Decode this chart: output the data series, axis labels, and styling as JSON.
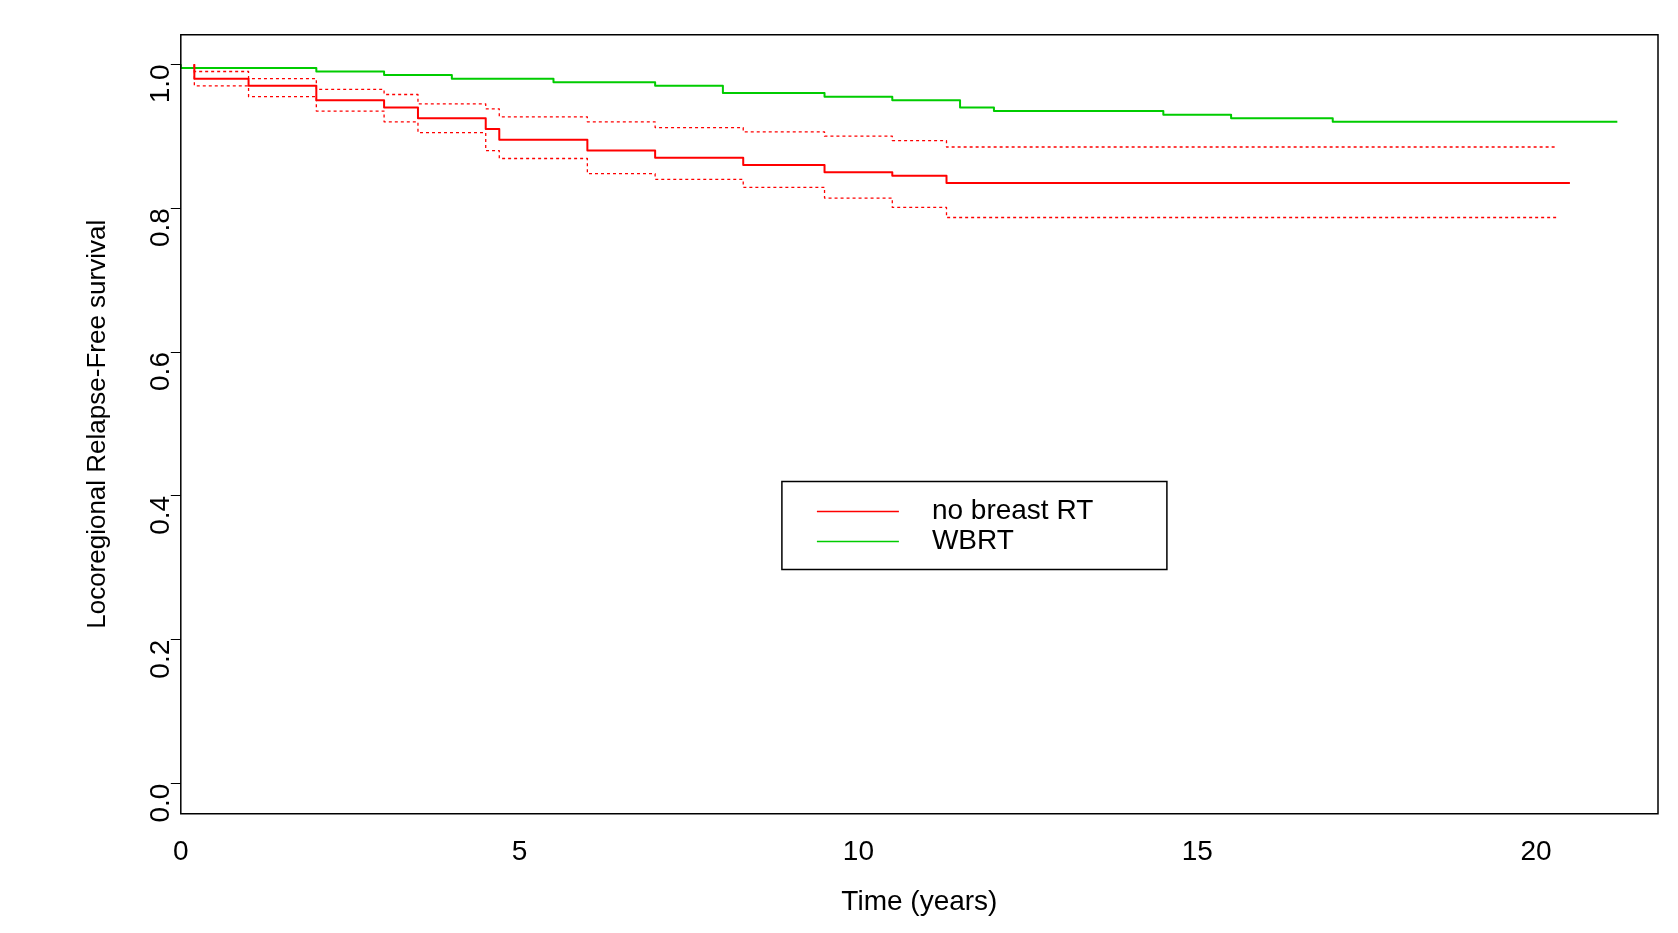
{
  "chart_data": {
    "type": "step",
    "xlabel": "Time (years)",
    "ylabel": "Locoregional Relapse-Free survival",
    "xlim": [
      0,
      21.8
    ],
    "ylim": [
      -0.042,
      1.041
    ],
    "xticks": [
      0,
      5,
      10,
      15,
      20
    ],
    "yticks": [
      {
        "value": 0,
        "label": "0.0"
      },
      {
        "value": 0.2,
        "label": "0.2"
      },
      {
        "value": 0.4,
        "label": "0.4"
      },
      {
        "value": 0.6,
        "label": "0.6"
      },
      {
        "value": 0.8,
        "label": "0.8"
      },
      {
        "value": 1,
        "label": "1.0"
      }
    ],
    "grid": false,
    "legend": "center",
    "line_style": "solid",
    "marker": "none",
    "series": [
      {
        "name": "no breast RT",
        "color": "#ff0000",
        "x": [
          0.2,
          1,
          2,
          3,
          3.5,
          4.5,
          4.7,
          6,
          7,
          8.3,
          9.5,
          10.5,
          11.3,
          12.3,
          20.5
        ],
        "values": [
          1,
          0.98,
          0.97,
          0.95,
          0.94,
          0.925,
          0.91,
          0.895,
          0.88,
          0.87,
          0.86,
          0.85,
          0.845,
          0.835,
          0.835
        ]
      },
      {
        "color": "#ff0000",
        "line_style": "dotted",
        "x": [
          0.2,
          1,
          2,
          3,
          3.5,
          4.5,
          4.7,
          6,
          7,
          8.3,
          9.5,
          10.5,
          11.3,
          12.3,
          20.3
        ],
        "values": [
          1,
          0.97,
          0.955,
          0.935,
          0.92,
          0.905,
          0.88,
          0.869,
          0.848,
          0.84,
          0.829,
          0.814,
          0.801,
          0.787,
          0.787
        ]
      },
      {
        "color": "#ff0000",
        "line_style": "dotted",
        "x": [
          0.2,
          1,
          2,
          3,
          3.5,
          4.5,
          4.7,
          6,
          7,
          8.3,
          9.5,
          10.5,
          11.3,
          12.3,
          20.3
        ],
        "values": [
          1,
          0.99,
          0.98,
          0.965,
          0.958,
          0.945,
          0.938,
          0.927,
          0.92,
          0.912,
          0.906,
          0.9,
          0.894,
          0.885,
          0.885
        ]
      },
      {
        "name": "WBRT",
        "color": "#00cc00",
        "x": [
          0,
          2,
          3,
          4,
          5.5,
          7,
          8,
          9.5,
          10.5,
          11.5,
          12,
          14.5,
          15.5,
          17,
          18,
          21.2
        ],
        "values": [
          1,
          0.995,
          0.99,
          0.985,
          0.98,
          0.975,
          0.97,
          0.96,
          0.955,
          0.95,
          0.94,
          0.935,
          0.93,
          0.925,
          0.92,
          0.92
        ]
      }
    ]
  }
}
